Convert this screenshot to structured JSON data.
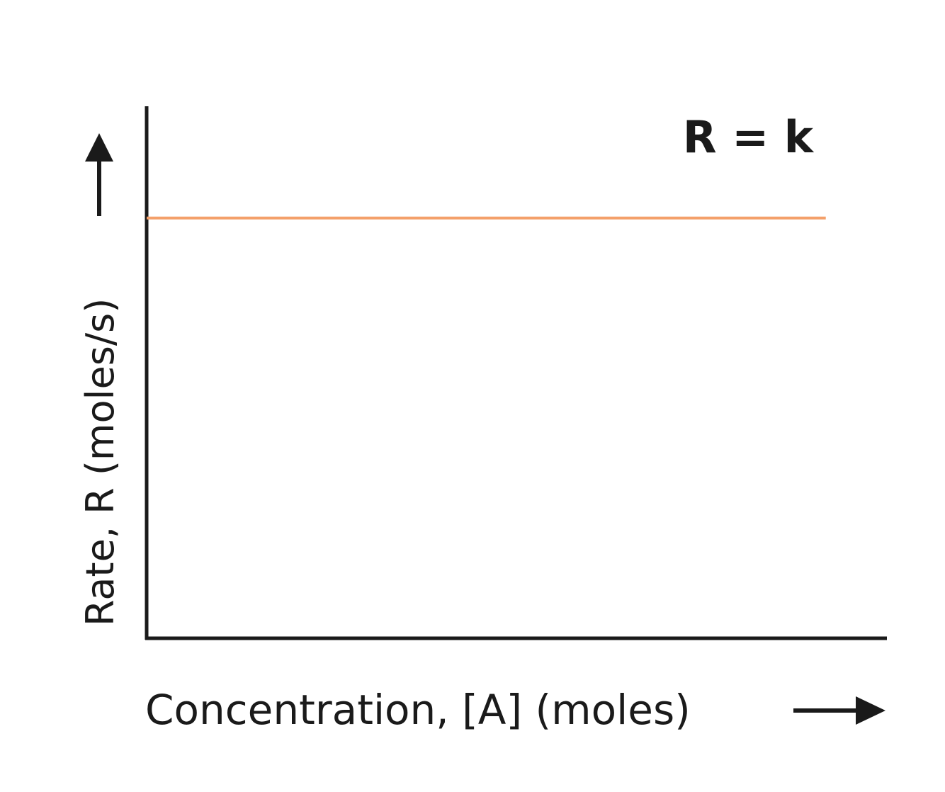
{
  "chart_data": {
    "type": "line",
    "title": "",
    "xlabel": "Concentration, [A] (moles)",
    "ylabel": "Rate, R (moles/s)",
    "annotation": "R = k",
    "x": [
      0,
      1
    ],
    "series": [
      {
        "values": [
          0.79,
          0.79
        ],
        "color": "#f4a06a"
      }
    ],
    "xlim": [
      0,
      1.09
    ],
    "ylim": [
      0,
      1
    ],
    "grid": false,
    "ticks": false
  }
}
